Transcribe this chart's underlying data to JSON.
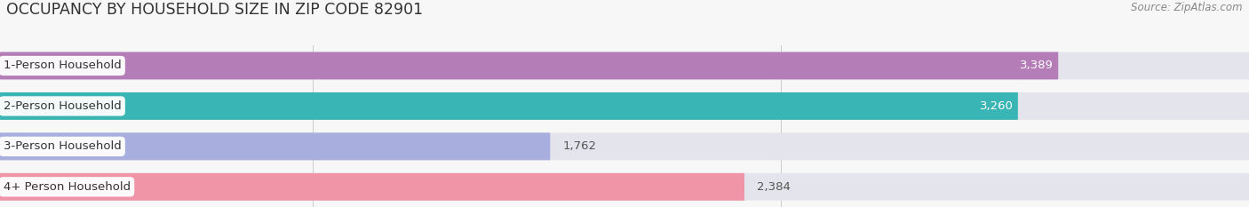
{
  "title": "OCCUPANCY BY HOUSEHOLD SIZE IN ZIP CODE 82901",
  "source": "Source: ZipAtlas.com",
  "categories": [
    "1-Person Household",
    "2-Person Household",
    "3-Person Household",
    "4+ Person Household"
  ],
  "values": [
    3389,
    3260,
    1762,
    2384
  ],
  "bar_colors": [
    "#b57db8",
    "#3ab5b5",
    "#a8aedd",
    "#f094a8"
  ],
  "label_colors": [
    "white",
    "white",
    "#666666",
    "#666666"
  ],
  "bg_color": "#f7f7f7",
  "bar_bg_color": "#e4e4ec",
  "xlim": [
    0,
    4000
  ],
  "xticks": [
    1000,
    2500,
    4000
  ],
  "title_fontsize": 12.5,
  "source_fontsize": 8.5,
  "bar_label_fontsize": 9.5,
  "cat_label_fontsize": 9.5
}
